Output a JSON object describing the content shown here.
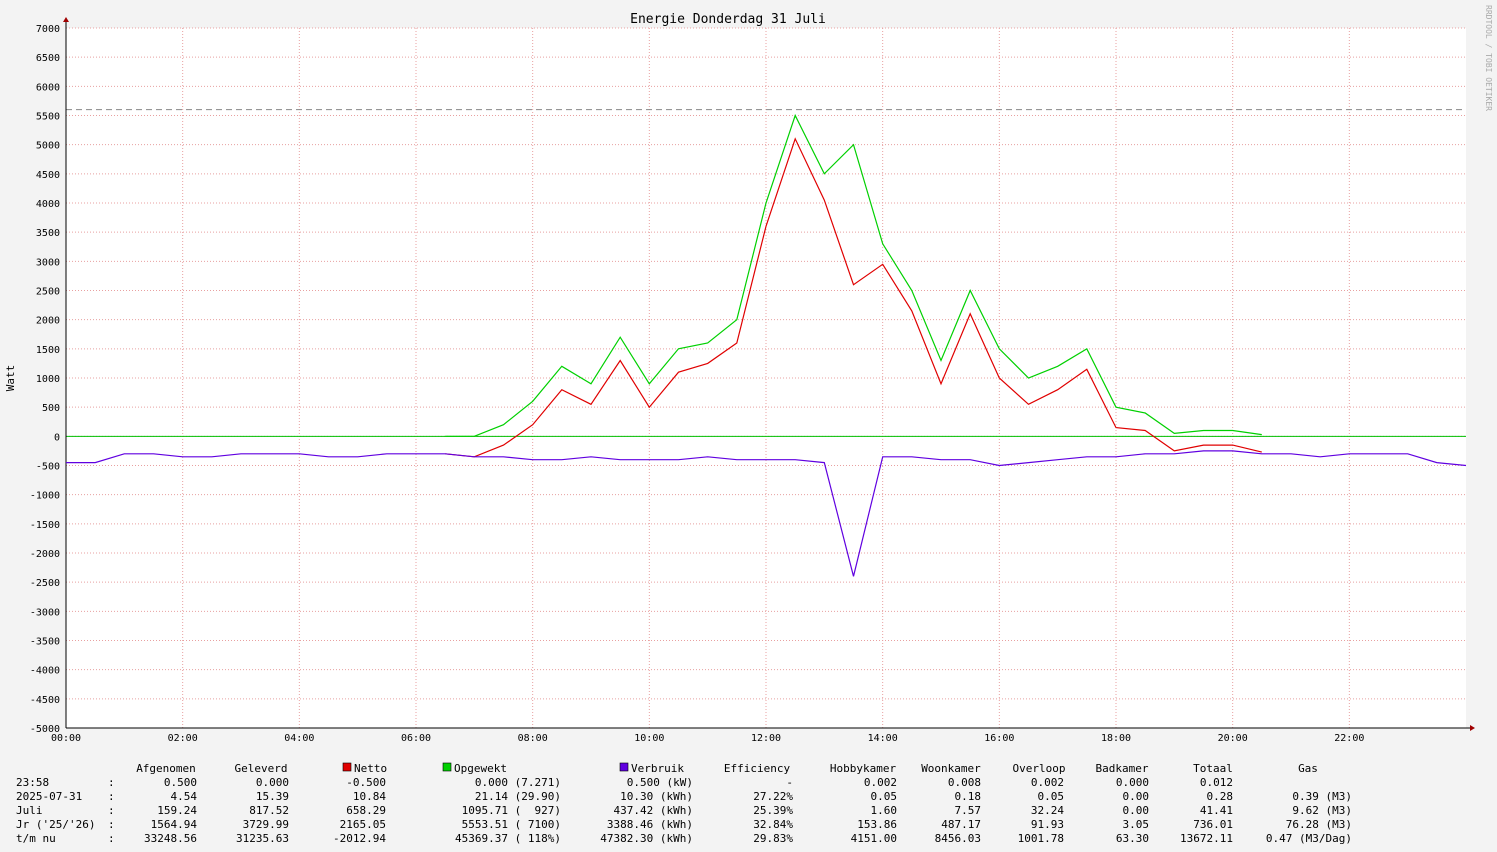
{
  "chart_data": {
    "type": "line",
    "title": "Energie Donderdag 31 Juli",
    "ylabel": "Watt",
    "watermark": "RRDTOOL / TOBI OETIKER",
    "x": [
      0,
      0.5,
      1,
      1.5,
      2,
      2.5,
      3,
      3.5,
      4,
      4.5,
      5,
      5.5,
      6,
      6.5,
      7,
      7.5,
      8,
      8.5,
      9,
      9.5,
      10,
      10.5,
      11,
      11.5,
      12,
      12.5,
      13,
      13.5,
      14,
      14.5,
      15,
      15.5,
      16,
      16.5,
      17,
      17.5,
      18,
      18.5,
      19,
      19.5,
      20,
      20.5,
      21,
      21.5,
      22,
      22.5,
      23,
      23.5,
      24
    ],
    "series": [
      {
        "name": "Netto",
        "color": "#e00000",
        "values": [
          null,
          null,
          null,
          null,
          null,
          null,
          null,
          null,
          null,
          null,
          null,
          null,
          null,
          -300,
          -350,
          -150,
          200,
          800,
          550,
          1300,
          500,
          1100,
          1250,
          1600,
          3600,
          5100,
          4050,
          2600,
          2950,
          2150,
          900,
          2100,
          1000,
          550,
          800,
          1150,
          150,
          100,
          -250,
          -150,
          -150,
          -270,
          null,
          null,
          null,
          null,
          null,
          null,
          null
        ]
      },
      {
        "name": "Opgewekt",
        "color": "#00d000",
        "values": [
          null,
          null,
          null,
          null,
          null,
          null,
          null,
          null,
          null,
          null,
          null,
          null,
          null,
          0,
          0,
          200,
          600,
          1200,
          900,
          1700,
          900,
          1500,
          1600,
          2000,
          4000,
          5500,
          4500,
          5000,
          3300,
          2500,
          1300,
          2500,
          1500,
          1000,
          1200,
          1500,
          500,
          400,
          50,
          100,
          100,
          30,
          null,
          null,
          null,
          null,
          null,
          null,
          null
        ]
      },
      {
        "name": "Verbruik",
        "color": "#6000e0",
        "values": [
          -450,
          -450,
          -300,
          -300,
          -350,
          -350,
          -300,
          -300,
          -300,
          -350,
          -350,
          -300,
          -300,
          -300,
          -350,
          -350,
          -400,
          -400,
          -350,
          -400,
          -400,
          -400,
          -350,
          -400,
          -400,
          -400,
          -450,
          -2400,
          -350,
          -350,
          -400,
          -400,
          -500,
          -450,
          -400,
          -350,
          -350,
          -300,
          -300,
          -250,
          -250,
          -300,
          -300,
          -350,
          -300,
          -300,
          -300,
          -450,
          -500
        ]
      }
    ],
    "reference_line": 5600,
    "xlim": [
      0,
      24
    ],
    "xticks": [
      {
        "value": 0,
        "label": "00:00"
      },
      {
        "value": 2,
        "label": "02:00"
      },
      {
        "value": 4,
        "label": "04:00"
      },
      {
        "value": 6,
        "label": "06:00"
      },
      {
        "value": 8,
        "label": "08:00"
      },
      {
        "value": 10,
        "label": "10:00"
      },
      {
        "value": 12,
        "label": "12:00"
      },
      {
        "value": 14,
        "label": "14:00"
      },
      {
        "value": 16,
        "label": "16:00"
      },
      {
        "value": 18,
        "label": "18:00"
      },
      {
        "value": 20,
        "label": "20:00"
      },
      {
        "value": 22,
        "label": "22:00"
      }
    ],
    "ylim": [
      -5000,
      7000
    ],
    "yticks": [
      -5000,
      -4500,
      -4000,
      -3500,
      -3000,
      -2500,
      -2000,
      -1500,
      -1000,
      -500,
      0,
      500,
      1000,
      1500,
      2000,
      2500,
      3000,
      3500,
      4000,
      4500,
      5000,
      5500,
      6000,
      6500,
      7000
    ],
    "grid": true
  },
  "table": {
    "columns": [
      "Afgenomen",
      "Geleverd",
      "Efficiency",
      "Hobbykamer",
      "Woonkamer",
      "Overloop",
      "Badkamer",
      "Totaal",
      "Gas"
    ],
    "separator": ":",
    "rows": [
      {
        "label": "23:58",
        "cells": [
          "0.500",
          "0.000",
          "-0.500",
          "0.000 (7.271)",
          "0.500 (kW)",
          "-",
          "0.002",
          "0.008",
          "0.002",
          "0.000",
          "0.012"
        ]
      },
      {
        "label": "2025-07-31",
        "cells": [
          "4.54",
          "15.39",
          "10.84",
          "21.14 (29.90)",
          "10.30 (kWh)",
          "27.22%",
          "0.05",
          "0.18",
          "0.05",
          "0.00",
          "0.28",
          "0.39 (M3)"
        ]
      },
      {
        "label": "Juli",
        "cells": [
          "159.24",
          "817.52",
          "658.29",
          "1095.71 (  927)",
          "437.42 (kWh)",
          "25.39%",
          "1.60",
          "7.57",
          "32.24",
          "0.00",
          "41.41",
          "9.62 (M3)"
        ]
      },
      {
        "label": "Jr ('25/'26)",
        "cells": [
          "1564.94",
          "3729.99",
          "2165.05",
          "5553.51 ( 7100)",
          "3388.46 (kWh)",
          "32.84%",
          "153.86",
          "487.17",
          "91.93",
          "3.05",
          "736.01",
          "76.28 (M3)"
        ]
      },
      {
        "label": "t/m nu",
        "cells": [
          "33248.56",
          "31235.63",
          "-2012.94",
          "45369.37 ( 118%)",
          "47382.30 (kWh)",
          "29.83%",
          "4151.00",
          "8456.03",
          "1001.78",
          "63.30",
          "13672.11",
          "0.47 (M3/Dag)"
        ]
      }
    ]
  }
}
